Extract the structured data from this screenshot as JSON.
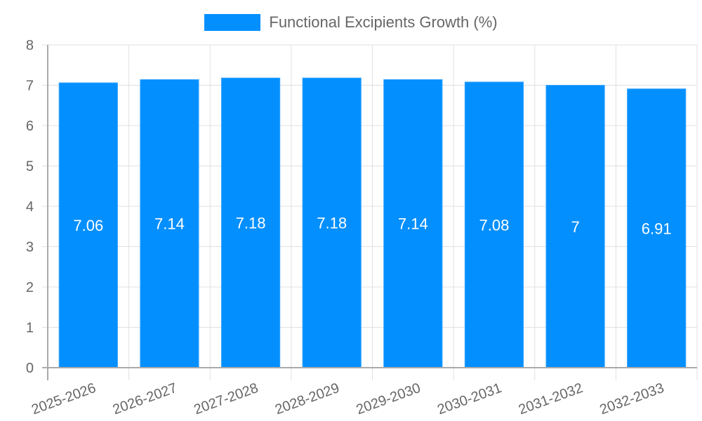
{
  "chart_data": {
    "type": "bar",
    "title": "",
    "xlabel": "",
    "ylabel": "",
    "categories": [
      "2025-2026",
      "2026-2027",
      "2027-2028",
      "2028-2029",
      "2029-2030",
      "2030-2031",
      "2031-2032",
      "2032-2033"
    ],
    "series": [
      {
        "name": "Functional Excipients Growth (%)",
        "values": [
          7.06,
          7.14,
          7.18,
          7.18,
          7.14,
          7.08,
          7,
          6.91
        ],
        "color": "#038ffe"
      }
    ],
    "data_labels": [
      "7.06",
      "7.14",
      "7.18",
      "7.18",
      "7.14",
      "7.08",
      "7",
      "6.91"
    ],
    "ylim": [
      0,
      8
    ],
    "yticks": [
      0,
      1,
      2,
      3,
      4,
      5,
      6,
      7,
      8
    ],
    "grid": true,
    "legend_position": "top",
    "xtick_rotation": -20
  },
  "legend": {
    "label": "Functional Excipients Growth (%)"
  },
  "colors": {
    "bar": "#038ffe",
    "grid": "#e0e0e0",
    "axis": "#aaaaaa",
    "tick_text": "#666666",
    "label_text": "#ffffff"
  }
}
